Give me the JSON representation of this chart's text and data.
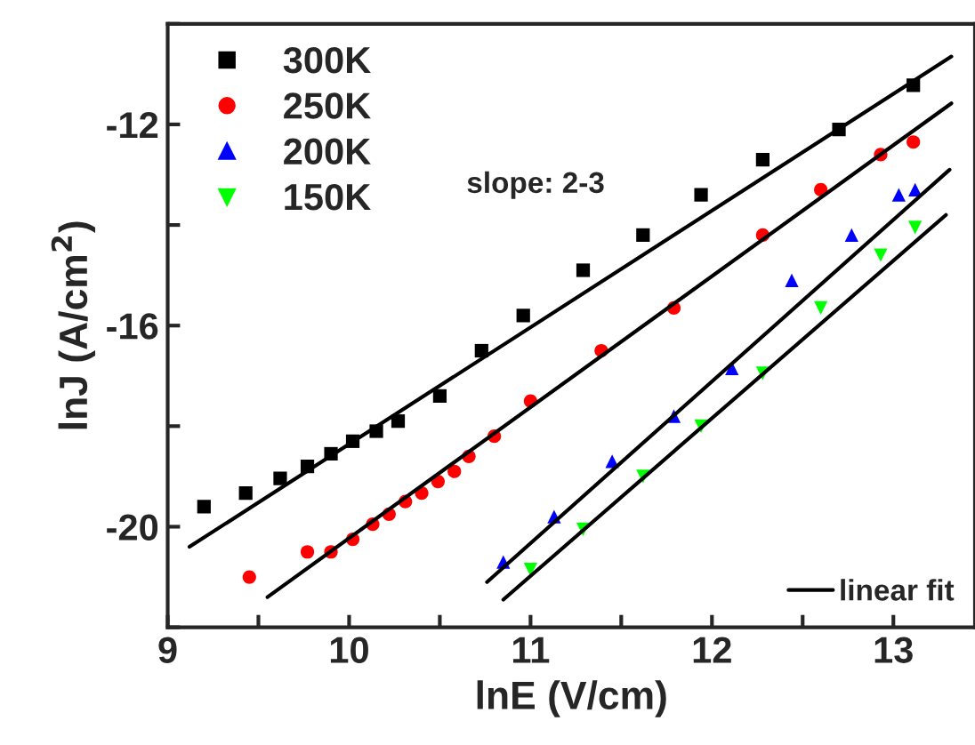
{
  "chart_data": {
    "type": "scatter",
    "xlabel": "lnE (V/cm)",
    "ylabel": "lnJ (A/cm$^{2}$)",
    "xlim": [
      9,
      13.45
    ],
    "ylim": [
      -22,
      -10
    ],
    "xticks": [
      9,
      {
        "value": 9.5,
        "label": null
      },
      10,
      {
        "value": 10.5,
        "label": null
      },
      11,
      {
        "value": 11.5,
        "label": null
      },
      12,
      {
        "value": 12.5,
        "label": null
      },
      13
    ],
    "yticks": [
      {
        "value": -22,
        "label": null
      },
      -20,
      {
        "value": -18,
        "label": null
      },
      -16,
      {
        "value": -14,
        "label": null
      },
      -12,
      {
        "value": -10,
        "label": null
      }
    ],
    "grid": false,
    "legend": "top left",
    "annotations": [
      "slope: 2-3"
    ],
    "series": [
      {
        "name": "300K",
        "color": "#000000",
        "marker": "square",
        "x": [
          9.2,
          9.43,
          9.62,
          9.77,
          9.9,
          10.02,
          10.15,
          10.27,
          10.5,
          10.73,
          10.96,
          11.29,
          11.62,
          11.94,
          12.28,
          12.7,
          13.11
        ],
        "values": [
          -19.6,
          -19.33,
          -19.04,
          -18.8,
          -18.55,
          -18.3,
          -18.1,
          -17.9,
          -17.4,
          -16.5,
          -15.8,
          -14.9,
          -14.2,
          -13.4,
          -12.7,
          -12.1,
          -11.22
        ]
      },
      {
        "name": "250K",
        "color": "#ff0000",
        "marker": "circle",
        "x": [
          9.45,
          9.77,
          9.9,
          10.02,
          10.13,
          10.22,
          10.31,
          10.4,
          10.49,
          10.58,
          10.66,
          10.8,
          11.0,
          11.39,
          11.79,
          12.28,
          12.6,
          12.93,
          13.11
        ],
        "values": [
          -21.0,
          -20.5,
          -20.5,
          -20.25,
          -19.95,
          -19.75,
          -19.5,
          -19.33,
          -19.1,
          -18.9,
          -18.6,
          -18.2,
          -17.5,
          -16.5,
          -15.65,
          -14.2,
          -13.3,
          -12.6,
          -12.35
        ]
      },
      {
        "name": "200K",
        "color": "#0000ff",
        "marker": "triangle",
        "x": [
          10.85,
          11.13,
          11.45,
          11.79,
          12.11,
          12.44,
          12.77,
          13.03,
          13.12
        ],
        "values": [
          -20.7,
          -19.8,
          -18.7,
          -17.8,
          -16.85,
          -15.1,
          -14.2,
          -13.4,
          -13.3
        ]
      },
      {
        "name": "150K",
        "color": "#00ff00",
        "marker": "triangle_down",
        "x": [
          11.0,
          11.29,
          11.62,
          11.94,
          12.28,
          12.6,
          12.93,
          13.12
        ],
        "values": [
          -20.85,
          -20.05,
          -19.0,
          -18.0,
          -16.95,
          -15.65,
          -14.6,
          -14.05
        ]
      },
      {
        "name": "linear fit",
        "type": "line",
        "color": "#000000",
        "line_style": "solid",
        "x": [
          9.12,
          13.32
        ],
        "values": [
          -20.4,
          -10.65
        ]
      },
      {
        "type": "line",
        "color": "#000000",
        "line_style": "solid",
        "x": [
          9.55,
          13.32
        ],
        "values": [
          -21.4,
          -11.58
        ]
      },
      {
        "type": "line",
        "color": "#000000",
        "line_style": "solid",
        "x": [
          10.76,
          13.31
        ],
        "values": [
          -21.1,
          -12.9
        ]
      },
      {
        "type": "line",
        "color": "#000000",
        "line_style": "solid",
        "x": [
          10.85,
          13.29
        ],
        "values": [
          -21.45,
          -13.8
        ]
      }
    ]
  }
}
